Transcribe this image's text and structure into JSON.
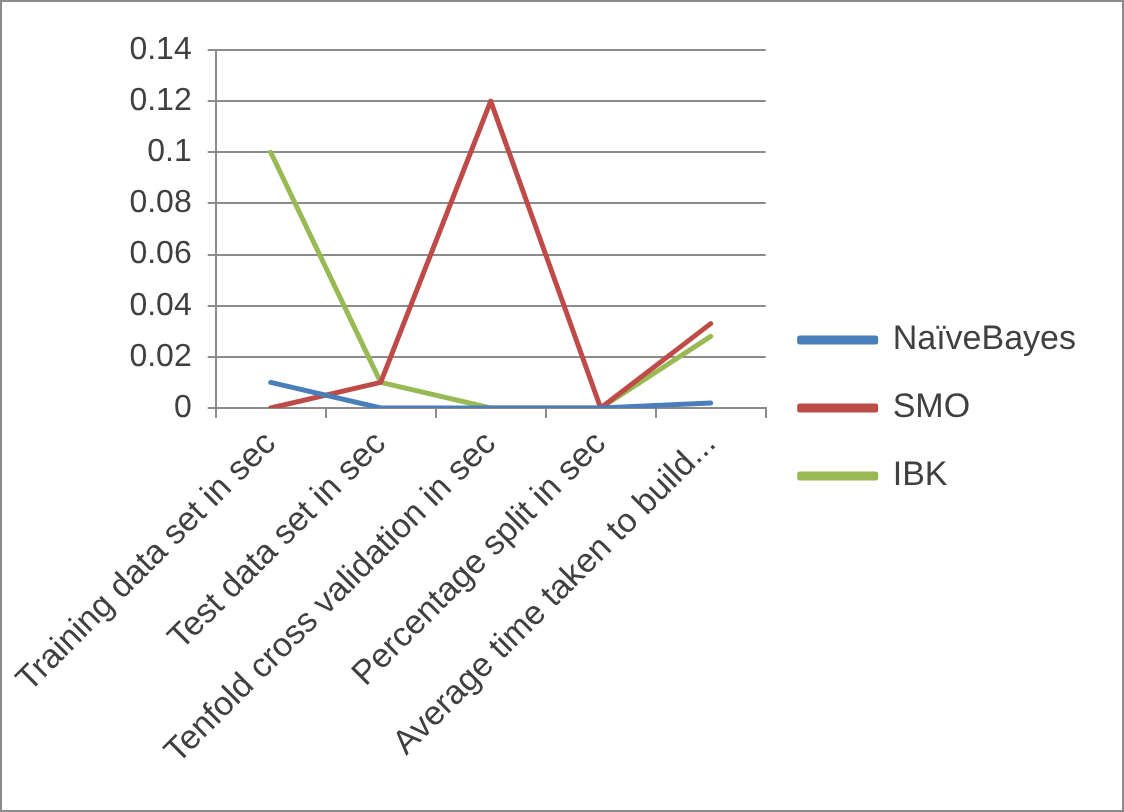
{
  "chart_data": {
    "type": "line",
    "categories": [
      "Training data set in sec",
      "Test data set in sec",
      "Tenfold cross validation in sec",
      "Percentage split in sec",
      "Average time taken to build..."
    ],
    "series": [
      {
        "name": "NaïveBayes",
        "color": "#4a7ebb",
        "values": [
          0.01,
          0,
          0,
          0,
          0.002
        ]
      },
      {
        "name": "SMO",
        "color": "#be4b48",
        "values": [
          0,
          0.01,
          0.12,
          0,
          0.033
        ]
      },
      {
        "name": "IBK",
        "color": "#98b954",
        "values": [
          0.1,
          0.01,
          0,
          0,
          0.028
        ]
      }
    ],
    "ylim": [
      0,
      0.14
    ],
    "yticks": [
      0,
      0.02,
      0.04,
      0.06,
      0.08,
      0.1,
      0.12,
      0.14
    ],
    "grid": "y",
    "legend": "right",
    "marker": "none",
    "line_style": "solid"
  }
}
